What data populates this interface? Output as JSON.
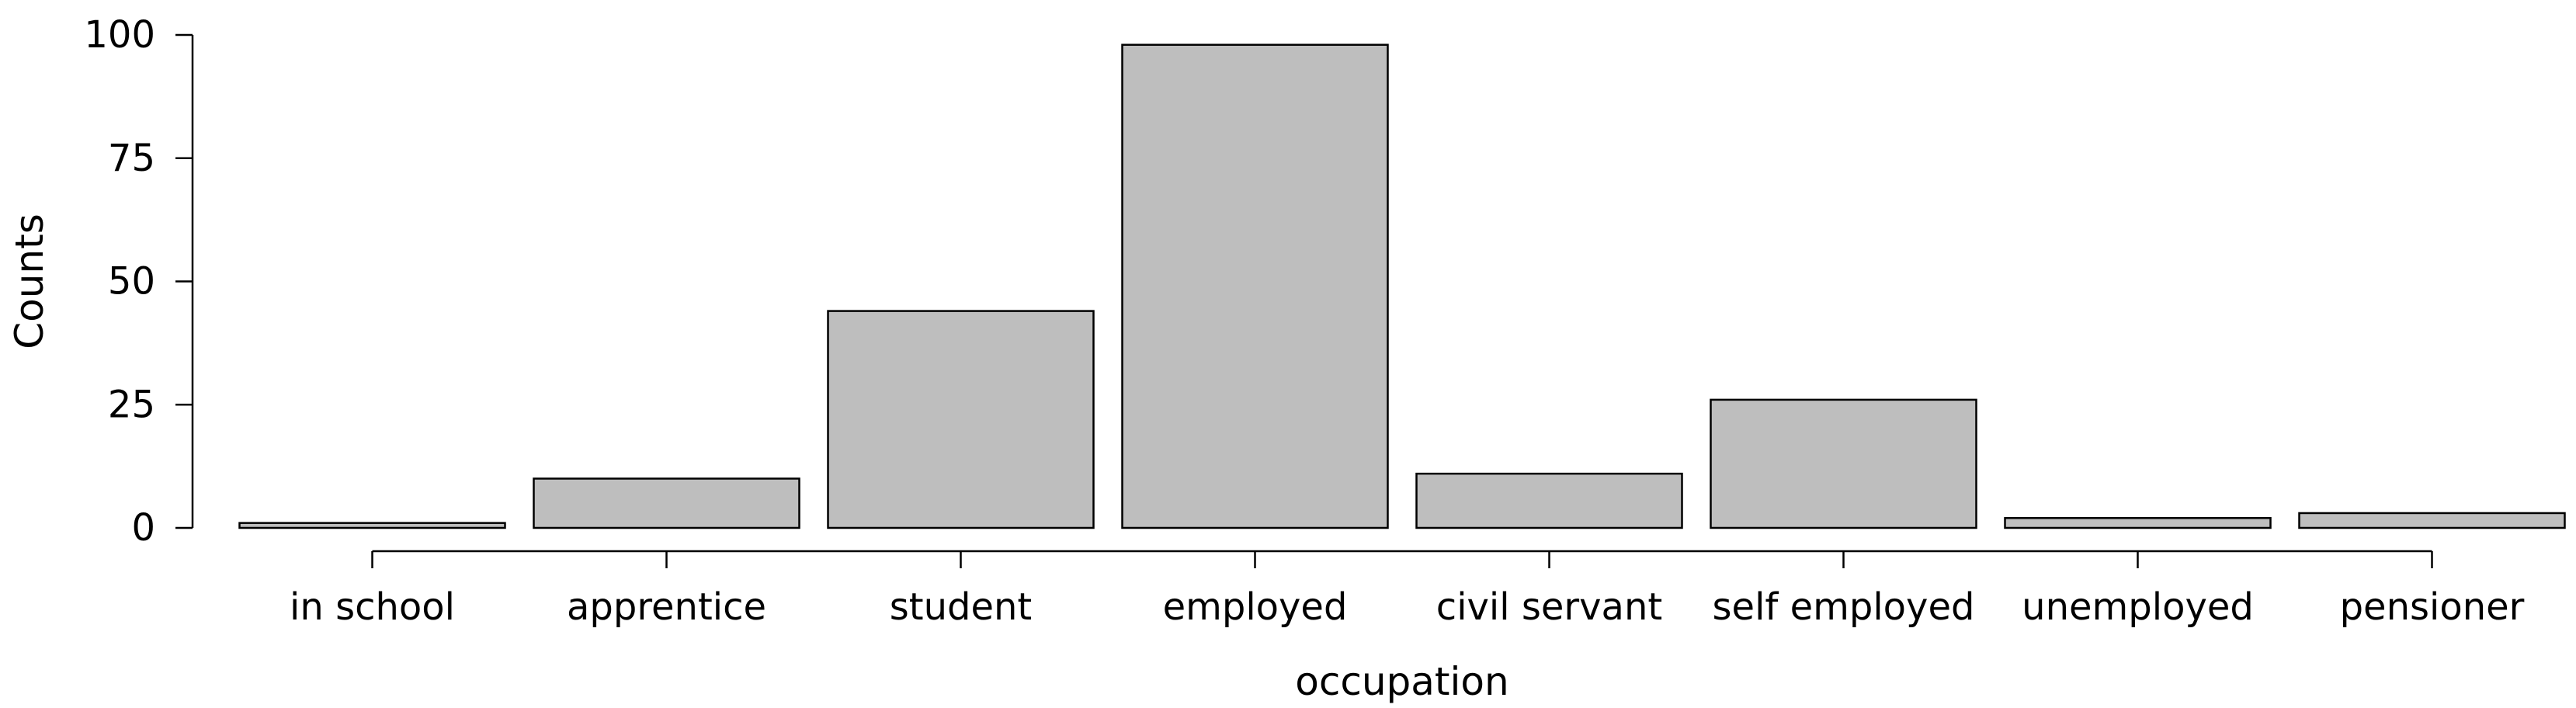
{
  "chart_data": {
    "type": "bar",
    "title": "",
    "xlabel": "occupation",
    "ylabel": "Counts",
    "categories": [
      "in school",
      "apprentice",
      "student",
      "employed",
      "civil servant",
      "self employed",
      "unemployed",
      "pensioner"
    ],
    "values": [
      1,
      10,
      44,
      98,
      11,
      26,
      2,
      3
    ],
    "ylim": [
      0,
      100
    ],
    "yticks": [
      0,
      25,
      50,
      75,
      100
    ],
    "grid": false,
    "legend": "none",
    "colors": {
      "bar_fill": "#bebebe",
      "bar_stroke": "#000000",
      "axis": "#000000",
      "background": "#ffffff"
    }
  }
}
